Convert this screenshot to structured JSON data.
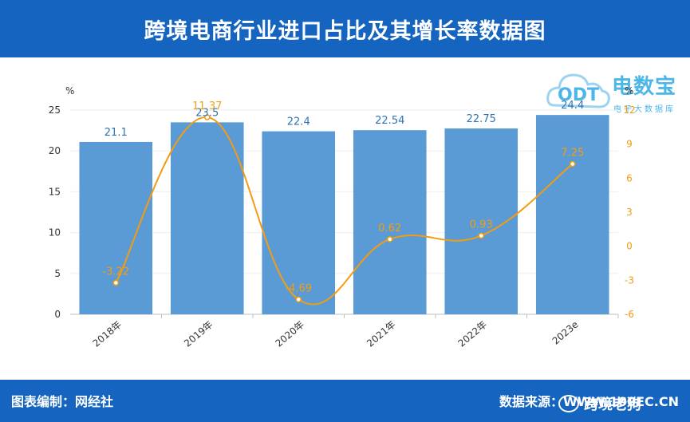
{
  "header": {
    "title": "跨境电商行业进口占比及其增长率数据图"
  },
  "footer": {
    "left_text": "图表编制：网经社",
    "right_text": "数据来源：WWW.100EC.CN",
    "watermark": "跨境老狗"
  },
  "logo": {
    "brand": "电数宝",
    "tagline": "电子大数据库",
    "abbr": "ODT"
  },
  "colors": {
    "bar": "#5b9bd5",
    "line": "#f39c12",
    "header": "#1565c0",
    "label_left": "#2f75b5"
  },
  "chart_data": {
    "type": "bar",
    "categories": [
      "2018年",
      "2019年",
      "2020年",
      "2021年",
      "2022年",
      "2023e"
    ],
    "series": [
      {
        "values": [
          21.1,
          23.5,
          22.4,
          22.54,
          22.75,
          24.4
        ],
        "axis": "left"
      },
      {
        "values": [
          -3.22,
          11.37,
          -4.69,
          0.62,
          0.93,
          7.25
        ],
        "axis": "right"
      }
    ],
    "left_axis": {
      "unit": "%",
      "ylim": [
        0,
        25
      ],
      "ticks": [
        0,
        5,
        10,
        15,
        20,
        25
      ]
    },
    "right_axis": {
      "unit": "%",
      "ylim": [
        -6,
        12
      ],
      "ticks": [
        -6,
        -3,
        0,
        3,
        6,
        9,
        12
      ]
    },
    "title": "跨境电商行业进口占比及其增长率数据图",
    "xlabel": "",
    "ylabel": "",
    "grid": true,
    "legend": "none"
  }
}
